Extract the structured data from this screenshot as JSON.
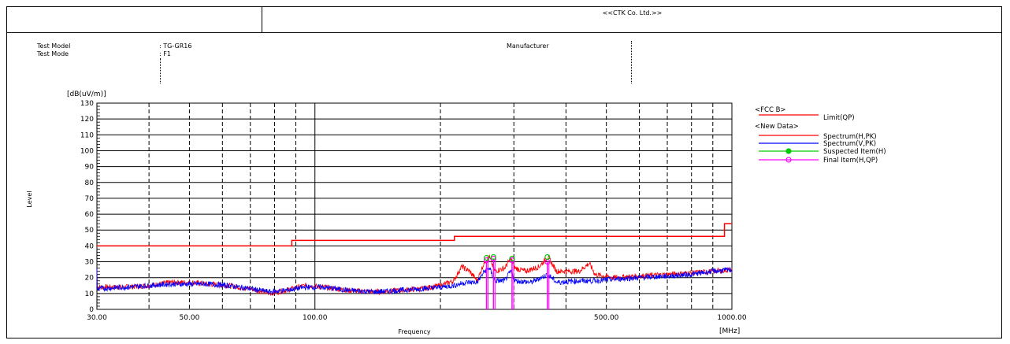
{
  "company": "<<CTK Co. Ltd.>>",
  "test_info": {
    "model_label": "Test Model",
    "model_value": ": TG-GR16",
    "mode_label": "Test Mode",
    "mode_value": ": F1",
    "manufacturer_label": "Manufacturer"
  },
  "chart_data": {
    "type": "line",
    "xscale": "log",
    "xlim": [
      30,
      1000
    ],
    "ylim": [
      0,
      130
    ],
    "xlabel": "Frequency",
    "xunit": "[MHz]",
    "ylabel": "Level",
    "yunit": "[dB(uV/m)]",
    "x_tick_labels": [
      "30.00",
      "50.00",
      "100.00",
      "500.00",
      "1000.00"
    ],
    "x_ticks": [
      30,
      50,
      100,
      500,
      1000
    ],
    "y_ticks": [
      0,
      10,
      20,
      30,
      40,
      50,
      60,
      70,
      80,
      90,
      100,
      110,
      120,
      130
    ],
    "grid": true,
    "legend_position": "right",
    "legend_groups": [
      {
        "title": "<FCC B>",
        "entries": [
          {
            "name": "Limit(QP)",
            "color": "#ff0000",
            "marker": "none"
          }
        ]
      },
      {
        "title": "<New Data>",
        "entries": [
          {
            "name": "Spectrum(H,PK)",
            "color": "#ff0000",
            "marker": "none"
          },
          {
            "name": "Spectrum(V,PK)",
            "color": "#0000ff",
            "marker": "none"
          },
          {
            "name": "Suspected Item(H)",
            "color": "#00cc00",
            "marker": "circle"
          },
          {
            "name": "Final Item(H,QP)",
            "color": "#ff00ff",
            "marker": "circle"
          }
        ]
      }
    ],
    "limit": [
      {
        "x": 30,
        "y": 40
      },
      {
        "x": 88,
        "y": 40
      },
      {
        "x": 88,
        "y": 43.5
      },
      {
        "x": 216,
        "y": 43.5
      },
      {
        "x": 216,
        "y": 46
      },
      {
        "x": 960,
        "y": 46
      },
      {
        "x": 960,
        "y": 54
      },
      {
        "x": 1000,
        "y": 54
      }
    ],
    "spectrum_h": [
      [
        30,
        14
      ],
      [
        35,
        14
      ],
      [
        40,
        15
      ],
      [
        45,
        17
      ],
      [
        50,
        17
      ],
      [
        55,
        16
      ],
      [
        62,
        15
      ],
      [
        70,
        13
      ],
      [
        78,
        10
      ],
      [
        85,
        12
      ],
      [
        95,
        15
      ],
      [
        105,
        14
      ],
      [
        120,
        12
      ],
      [
        140,
        11
      ],
      [
        160,
        12
      ],
      [
        180,
        13
      ],
      [
        200,
        15
      ],
      [
        215,
        18
      ],
      [
        225,
        27
      ],
      [
        235,
        24
      ],
      [
        245,
        18
      ],
      [
        255,
        30
      ],
      [
        262,
        33
      ],
      [
        270,
        24
      ],
      [
        285,
        26
      ],
      [
        295,
        32
      ],
      [
        302,
        26
      ],
      [
        320,
        24
      ],
      [
        345,
        27
      ],
      [
        362,
        33
      ],
      [
        380,
        24
      ],
      [
        430,
        24
      ],
      [
        455,
        29
      ],
      [
        470,
        22
      ],
      [
        520,
        20
      ],
      [
        600,
        21
      ],
      [
        700,
        22
      ],
      [
        800,
        23
      ],
      [
        900,
        24
      ],
      [
        1000,
        25
      ]
    ],
    "spectrum_v": [
      [
        30,
        13
      ],
      [
        35,
        14
      ],
      [
        40,
        15
      ],
      [
        45,
        16
      ],
      [
        50,
        16
      ],
      [
        55,
        16
      ],
      [
        62,
        15
      ],
      [
        70,
        13
      ],
      [
        78,
        11
      ],
      [
        85,
        12
      ],
      [
        95,
        14
      ],
      [
        105,
        14
      ],
      [
        120,
        12
      ],
      [
        140,
        11
      ],
      [
        160,
        12
      ],
      [
        180,
        13
      ],
      [
        200,
        14
      ],
      [
        215,
        15
      ],
      [
        230,
        17
      ],
      [
        245,
        17
      ],
      [
        255,
        24
      ],
      [
        262,
        26
      ],
      [
        270,
        18
      ],
      [
        285,
        18
      ],
      [
        295,
        24
      ],
      [
        302,
        18
      ],
      [
        330,
        17
      ],
      [
        362,
        22
      ],
      [
        380,
        17
      ],
      [
        430,
        18
      ],
      [
        470,
        18
      ],
      [
        520,
        19
      ],
      [
        600,
        20
      ],
      [
        700,
        21
      ],
      [
        800,
        22
      ],
      [
        900,
        24
      ],
      [
        1000,
        25
      ]
    ],
    "suspected_items": [
      {
        "x": 258,
        "y": 32.5
      },
      {
        "x": 268,
        "y": 33
      },
      {
        "x": 297,
        "y": 32
      },
      {
        "x": 361,
        "y": 33
      }
    ],
    "final_items": [
      {
        "x": 258,
        "y": 31
      },
      {
        "x": 268,
        "y": 32
      },
      {
        "x": 297,
        "y": 31
      },
      {
        "x": 361,
        "y": 30
      }
    ]
  }
}
